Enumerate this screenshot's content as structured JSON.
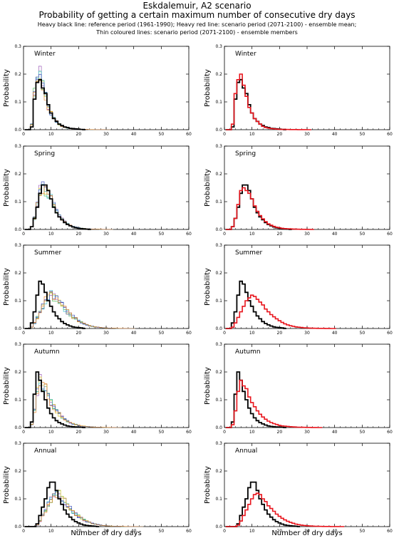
{
  "header": {
    "title": "Eskdalemuir, A2 scenario",
    "subtitle": "Probability of getting a certain maximum number of consecutive dry days",
    "legend_line1": "Heavy black line: reference period (1961-1990); Heavy red line: scenario period (2071-2100) - ensemble mean;",
    "legend_line2": "Thin coloured lines: scenario period (2071-2100) - ensemble members"
  },
  "chart_data": {
    "type": "step-histogram",
    "xlabel": "Number of dry days",
    "ylabel": "Probability",
    "xlim": [
      0,
      60
    ],
    "ylim": [
      0,
      0.3
    ],
    "xticks": [
      0,
      10,
      20,
      30,
      40,
      50,
      60
    ],
    "yticks": [
      0.0,
      0.1,
      0.2,
      0.3
    ],
    "colors": {
      "reference": "#000000",
      "scenario_mean": "#e8141c",
      "members": [
        "#3cb44b",
        "#8e44ad",
        "#d4c21a",
        "#27b6c2",
        "#2b3fb5",
        "#e07b1a"
      ]
    },
    "seasons": [
      {
        "name": "Winter",
        "reference": [
          [
            1,
            0
          ],
          [
            2,
            0
          ],
          [
            3,
            0.01
          ],
          [
            4,
            0.11
          ],
          [
            5,
            0.17
          ],
          [
            6,
            0.18
          ],
          [
            7,
            0.15
          ],
          [
            8,
            0.13
          ],
          [
            9,
            0.09
          ],
          [
            10,
            0.06
          ],
          [
            11,
            0.04
          ],
          [
            12,
            0.03
          ],
          [
            13,
            0.02
          ],
          [
            14,
            0.015
          ],
          [
            15,
            0.01
          ],
          [
            16,
            0.008
          ],
          [
            17,
            0.005
          ],
          [
            18,
            0.004
          ],
          [
            19,
            0.003
          ],
          [
            20,
            0.002
          ],
          [
            21,
            0.001
          ],
          [
            22,
            0
          ]
        ],
        "scenario": [
          [
            1,
            0
          ],
          [
            2,
            0
          ],
          [
            3,
            0.02
          ],
          [
            4,
            0.13
          ],
          [
            5,
            0.18
          ],
          [
            6,
            0.2
          ],
          [
            7,
            0.16
          ],
          [
            8,
            0.12
          ],
          [
            9,
            0.08
          ],
          [
            10,
            0.06
          ],
          [
            11,
            0.04
          ],
          [
            12,
            0.03
          ],
          [
            13,
            0.02
          ],
          [
            14,
            0.012
          ],
          [
            15,
            0.008
          ],
          [
            16,
            0.006
          ],
          [
            17,
            0.004
          ],
          [
            18,
            0.003
          ],
          [
            19,
            0.002
          ],
          [
            20,
            0.0015
          ],
          [
            21,
            0.001
          ],
          [
            22,
            0.001
          ],
          [
            23,
            0.0008
          ],
          [
            24,
            0.0006
          ],
          [
            25,
            0.0005
          ],
          [
            26,
            0.0004
          ],
          [
            27,
            0.0003
          ],
          [
            28,
            0.0002
          ],
          [
            29,
            0.0002
          ],
          [
            30,
            0.0001
          ],
          [
            31,
            0
          ]
        ]
      },
      {
        "name": "Spring",
        "reference": [
          [
            1,
            0
          ],
          [
            2,
            0
          ],
          [
            3,
            0.01
          ],
          [
            4,
            0.04
          ],
          [
            5,
            0.08
          ],
          [
            6,
            0.13
          ],
          [
            7,
            0.16
          ],
          [
            8,
            0.16
          ],
          [
            9,
            0.14
          ],
          [
            10,
            0.11
          ],
          [
            11,
            0.08
          ],
          [
            12,
            0.06
          ],
          [
            13,
            0.045
          ],
          [
            14,
            0.035
          ],
          [
            15,
            0.025
          ],
          [
            16,
            0.018
          ],
          [
            17,
            0.013
          ],
          [
            18,
            0.009
          ],
          [
            19,
            0.006
          ],
          [
            20,
            0.004
          ],
          [
            21,
            0.003
          ],
          [
            22,
            0.002
          ],
          [
            23,
            0.001
          ],
          [
            24,
            0
          ]
        ],
        "scenario": [
          [
            1,
            0
          ],
          [
            2,
            0
          ],
          [
            3,
            0.01
          ],
          [
            4,
            0.04
          ],
          [
            5,
            0.09
          ],
          [
            6,
            0.14
          ],
          [
            7,
            0.15
          ],
          [
            8,
            0.14
          ],
          [
            9,
            0.13
          ],
          [
            10,
            0.11
          ],
          [
            11,
            0.085
          ],
          [
            12,
            0.065
          ],
          [
            13,
            0.05
          ],
          [
            14,
            0.038
          ],
          [
            15,
            0.028
          ],
          [
            16,
            0.02
          ],
          [
            17,
            0.015
          ],
          [
            18,
            0.011
          ],
          [
            19,
            0.008
          ],
          [
            20,
            0.006
          ],
          [
            21,
            0.004
          ],
          [
            22,
            0.003
          ],
          [
            23,
            0.0025
          ],
          [
            24,
            0.002
          ],
          [
            25,
            0.0015
          ],
          [
            26,
            0.001
          ],
          [
            27,
            0.0008
          ],
          [
            28,
            0.0006
          ],
          [
            29,
            0.0004
          ],
          [
            30,
            0.0003
          ],
          [
            31,
            0.0002
          ],
          [
            32,
            0
          ]
        ]
      },
      {
        "name": "Summer",
        "reference": [
          [
            1,
            0
          ],
          [
            2,
            0
          ],
          [
            3,
            0.02
          ],
          [
            4,
            0.06
          ],
          [
            5,
            0.12
          ],
          [
            6,
            0.17
          ],
          [
            7,
            0.16
          ],
          [
            8,
            0.13
          ],
          [
            9,
            0.1
          ],
          [
            10,
            0.08
          ],
          [
            11,
            0.06
          ],
          [
            12,
            0.045
          ],
          [
            13,
            0.035
          ],
          [
            14,
            0.025
          ],
          [
            15,
            0.018
          ],
          [
            16,
            0.013
          ],
          [
            17,
            0.009
          ],
          [
            18,
            0.006
          ],
          [
            19,
            0.004
          ],
          [
            20,
            0.003
          ],
          [
            21,
            0.002
          ],
          [
            22,
            0
          ]
        ],
        "scenario": [
          [
            1,
            0
          ],
          [
            2,
            0
          ],
          [
            3,
            0.005
          ],
          [
            4,
            0.02
          ],
          [
            5,
            0.04
          ],
          [
            6,
            0.06
          ],
          [
            7,
            0.08
          ],
          [
            8,
            0.1
          ],
          [
            9,
            0.11
          ],
          [
            10,
            0.12
          ],
          [
            11,
            0.115
          ],
          [
            12,
            0.105
          ],
          [
            13,
            0.095
          ],
          [
            14,
            0.085
          ],
          [
            15,
            0.07
          ],
          [
            16,
            0.06
          ],
          [
            17,
            0.05
          ],
          [
            18,
            0.042
          ],
          [
            19,
            0.035
          ],
          [
            20,
            0.028
          ],
          [
            21,
            0.022
          ],
          [
            22,
            0.017
          ],
          [
            23,
            0.013
          ],
          [
            24,
            0.01
          ],
          [
            25,
            0.008
          ],
          [
            26,
            0.006
          ],
          [
            27,
            0.0045
          ],
          [
            28,
            0.0035
          ],
          [
            29,
            0.0025
          ],
          [
            30,
            0.002
          ],
          [
            31,
            0.0015
          ],
          [
            32,
            0.001
          ],
          [
            33,
            0.0008
          ],
          [
            34,
            0.0006
          ],
          [
            35,
            0.0005
          ],
          [
            36,
            0.0004
          ],
          [
            37,
            0.0003
          ],
          [
            38,
            0.0002
          ],
          [
            39,
            0.0001
          ],
          [
            40,
            0
          ]
        ]
      },
      {
        "name": "Autumn",
        "reference": [
          [
            1,
            0
          ],
          [
            2,
            0
          ],
          [
            3,
            0.02
          ],
          [
            4,
            0.12
          ],
          [
            5,
            0.2
          ],
          [
            6,
            0.17
          ],
          [
            7,
            0.13
          ],
          [
            8,
            0.1
          ],
          [
            9,
            0.07
          ],
          [
            10,
            0.05
          ],
          [
            11,
            0.035
          ],
          [
            12,
            0.025
          ],
          [
            13,
            0.018
          ],
          [
            14,
            0.013
          ],
          [
            15,
            0.009
          ],
          [
            16,
            0.006
          ],
          [
            17,
            0.004
          ],
          [
            18,
            0.003
          ],
          [
            19,
            0.002
          ],
          [
            20,
            0.0015
          ],
          [
            21,
            0.001
          ],
          [
            22,
            0
          ]
        ],
        "scenario": [
          [
            1,
            0
          ],
          [
            2,
            0
          ],
          [
            3,
            0.01
          ],
          [
            4,
            0.06
          ],
          [
            5,
            0.13
          ],
          [
            6,
            0.17
          ],
          [
            7,
            0.15
          ],
          [
            8,
            0.14
          ],
          [
            9,
            0.11
          ],
          [
            10,
            0.09
          ],
          [
            11,
            0.075
          ],
          [
            12,
            0.06
          ],
          [
            13,
            0.048
          ],
          [
            14,
            0.038
          ],
          [
            15,
            0.03
          ],
          [
            16,
            0.023
          ],
          [
            17,
            0.018
          ],
          [
            18,
            0.014
          ],
          [
            19,
            0.011
          ],
          [
            20,
            0.008
          ],
          [
            21,
            0.006
          ],
          [
            22,
            0.005
          ],
          [
            23,
            0.004
          ],
          [
            24,
            0.003
          ],
          [
            25,
            0.0022
          ],
          [
            26,
            0.0016
          ],
          [
            27,
            0.0012
          ],
          [
            28,
            0.0009
          ],
          [
            29,
            0.0007
          ],
          [
            30,
            0.0005
          ],
          [
            31,
            0.0004
          ],
          [
            32,
            0.0003
          ],
          [
            33,
            0.0002
          ],
          [
            34,
            0.0001
          ],
          [
            35,
            0
          ]
        ]
      },
      {
        "name": "Annual",
        "reference": [
          [
            1,
            0
          ],
          [
            2,
            0
          ],
          [
            3,
            0
          ],
          [
            4,
            0
          ],
          [
            5,
            0.01
          ],
          [
            6,
            0.04
          ],
          [
            7,
            0.07
          ],
          [
            8,
            0.1
          ],
          [
            9,
            0.14
          ],
          [
            10,
            0.16
          ],
          [
            11,
            0.16
          ],
          [
            12,
            0.13
          ],
          [
            13,
            0.1
          ],
          [
            14,
            0.08
          ],
          [
            15,
            0.06
          ],
          [
            16,
            0.045
          ],
          [
            17,
            0.034
          ],
          [
            18,
            0.025
          ],
          [
            19,
            0.018
          ],
          [
            20,
            0.013
          ],
          [
            21,
            0.009
          ],
          [
            22,
            0.006
          ],
          [
            23,
            0.004
          ],
          [
            24,
            0.003
          ],
          [
            25,
            0.002
          ],
          [
            26,
            0.001
          ],
          [
            27,
            0
          ]
        ],
        "scenario": [
          [
            1,
            0
          ],
          [
            2,
            0
          ],
          [
            3,
            0
          ],
          [
            4,
            0
          ],
          [
            5,
            0.005
          ],
          [
            6,
            0.02
          ],
          [
            7,
            0.04
          ],
          [
            8,
            0.06
          ],
          [
            9,
            0.08
          ],
          [
            10,
            0.1
          ],
          [
            11,
            0.115
          ],
          [
            12,
            0.12
          ],
          [
            13,
            0.115
          ],
          [
            14,
            0.1
          ],
          [
            15,
            0.09
          ],
          [
            16,
            0.075
          ],
          [
            17,
            0.065
          ],
          [
            18,
            0.055
          ],
          [
            19,
            0.045
          ],
          [
            20,
            0.037
          ],
          [
            21,
            0.03
          ],
          [
            22,
            0.024
          ],
          [
            23,
            0.019
          ],
          [
            24,
            0.015
          ],
          [
            25,
            0.012
          ],
          [
            26,
            0.009
          ],
          [
            27,
            0.007
          ],
          [
            28,
            0.0055
          ],
          [
            29,
            0.004
          ],
          [
            30,
            0.003
          ],
          [
            31,
            0.0023
          ],
          [
            32,
            0.0017
          ],
          [
            33,
            0.0013
          ],
          [
            34,
            0.001
          ],
          [
            35,
            0.0008
          ],
          [
            36,
            0.0006
          ],
          [
            37,
            0.0005
          ],
          [
            38,
            0.0004
          ],
          [
            39,
            0.0003
          ],
          [
            40,
            0.0002
          ],
          [
            41,
            0.0002
          ],
          [
            42,
            0.0001
          ],
          [
            43,
            0
          ]
        ]
      }
    ]
  }
}
